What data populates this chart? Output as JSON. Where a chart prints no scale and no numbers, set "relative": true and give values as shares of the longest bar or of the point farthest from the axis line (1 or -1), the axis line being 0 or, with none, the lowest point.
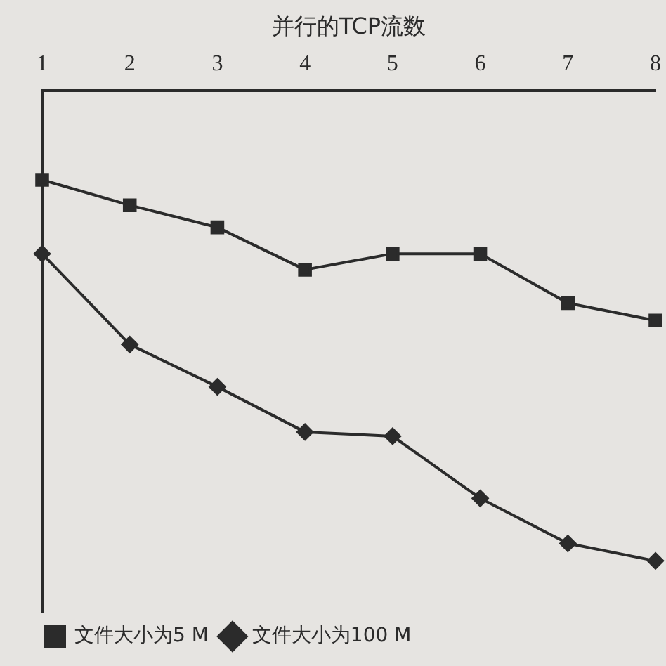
{
  "chart_data": {
    "type": "line",
    "xlabel": "并行的TCP流数",
    "relative": true,
    "legend": "bottom left",
    "grid": false,
    "categories": [
      "1",
      "2",
      "3",
      "4",
      "5",
      "6",
      "7",
      "8"
    ],
    "series": [
      {
        "name": "文件大小为5 M",
        "color": "#2b2b2b",
        "marker": "square",
        "values": [
          -0.19,
          -0.244,
          -0.291,
          -0.381,
          -0.347,
          -0.347,
          -0.452,
          -0.489
        ]
      },
      {
        "name": "文件大小为100 M",
        "color": "#2b2b2b",
        "marker": "diamond",
        "values": [
          -0.347,
          -0.54,
          -0.63,
          -0.726,
          -0.735,
          -0.867,
          -0.963,
          -1
        ]
      }
    ]
  }
}
